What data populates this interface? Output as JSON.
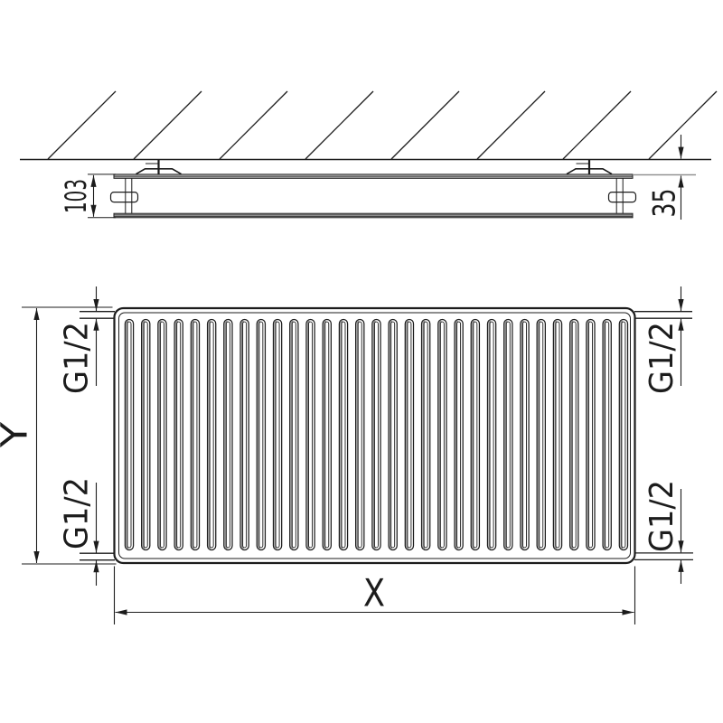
{
  "top_view": {
    "depth_dim": "103",
    "wall_distance_dim": "35"
  },
  "front_view": {
    "width_dim": "X",
    "height_dim": "Y",
    "conn_top_left": "G1/2",
    "conn_bottom_left": "G1/2",
    "conn_top_right": "G1/2",
    "conn_bottom_right": "G1/2",
    "fin_count": 31
  },
  "style": {
    "line_color": "#1c1c1c",
    "plate_fill": "#b4b4b4",
    "fin_shade": "#8e8e8e",
    "extension_gray": "#8a8a8a",
    "background": "#ffffff"
  }
}
